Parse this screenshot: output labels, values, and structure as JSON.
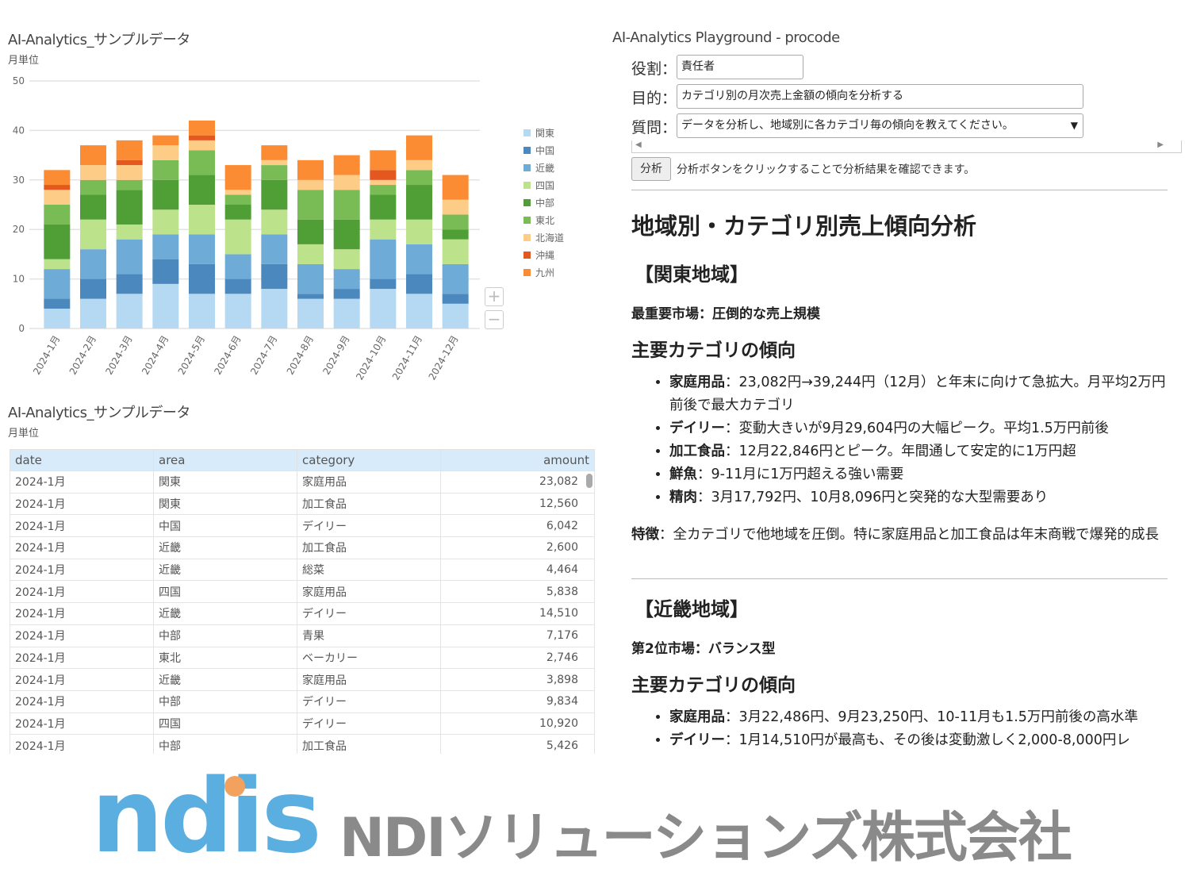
{
  "chart_panel": {
    "title": "AI-Analytics_サンプルデータ",
    "subtitle": "月単位",
    "zoom_in": "+",
    "zoom_out": "−"
  },
  "chart_data": {
    "type": "bar",
    "stacked": true,
    "ylim": [
      0,
      50
    ],
    "yticks": [
      0,
      10,
      20,
      30,
      40,
      50
    ],
    "grid": true,
    "legend_placement": "right",
    "categories": [
      "2024-1月",
      "2024-2月",
      "2024-3月",
      "2024-4月",
      "2024-5月",
      "2024-6月",
      "2024-7月",
      "2024-8月",
      "2024-9月",
      "2024-10月",
      "2024-11月",
      "2024-12月"
    ],
    "series": [
      {
        "name": "関東",
        "color": "#b5d9f3",
        "values": [
          4,
          6,
          7,
          9,
          7,
          7,
          8,
          6,
          6,
          8,
          7,
          5
        ]
      },
      {
        "name": "中国",
        "color": "#4a88bd",
        "values": [
          2,
          4,
          4,
          5,
          6,
          3,
          5,
          1,
          2,
          2,
          4,
          2
        ]
      },
      {
        "name": "近畿",
        "color": "#6eabd6",
        "values": [
          6,
          6,
          7,
          5,
          6,
          5,
          6,
          6,
          4,
          8,
          6,
          6
        ]
      },
      {
        "name": "四国",
        "color": "#bde28c",
        "values": [
          2,
          6,
          3,
          5,
          6,
          7,
          5,
          4,
          4,
          4,
          5,
          5
        ]
      },
      {
        "name": "中部",
        "color": "#4f9e36",
        "values": [
          7,
          5,
          7,
          6,
          6,
          3,
          6,
          5,
          6,
          5,
          7,
          2
        ]
      },
      {
        "name": "東北",
        "color": "#79bb55",
        "values": [
          4,
          3,
          2,
          4,
          5,
          2,
          3,
          6,
          6,
          2,
          3,
          3
        ]
      },
      {
        "name": "北海道",
        "color": "#fdcd88",
        "values": [
          3,
          3,
          3,
          3,
          2,
          1,
          1,
          2,
          3,
          1,
          2,
          3
        ]
      },
      {
        "name": "沖縄",
        "color": "#e4571e",
        "values": [
          1,
          0,
          1,
          0,
          1,
          0,
          0,
          0,
          0,
          2,
          0,
          0
        ]
      },
      {
        "name": "九州",
        "color": "#fb8c33",
        "values": [
          3,
          4,
          4,
          2,
          3,
          5,
          3,
          4,
          4,
          4,
          5,
          5
        ]
      }
    ]
  },
  "table_panel": {
    "title": "AI-Analytics_サンプルデータ",
    "subtitle": "月単位",
    "columns": [
      "date",
      "area",
      "category",
      "amount"
    ],
    "rows": [
      [
        "2024-1月",
        "関東",
        "家庭用品",
        "23,082"
      ],
      [
        "2024-1月",
        "関東",
        "加工食品",
        "12,560"
      ],
      [
        "2024-1月",
        "中国",
        "デイリー",
        "6,042"
      ],
      [
        "2024-1月",
        "近畿",
        "加工食品",
        "2,600"
      ],
      [
        "2024-1月",
        "近畿",
        "総菜",
        "4,464"
      ],
      [
        "2024-1月",
        "四国",
        "家庭用品",
        "5,838"
      ],
      [
        "2024-1月",
        "近畿",
        "デイリー",
        "14,510"
      ],
      [
        "2024-1月",
        "中部",
        "青果",
        "7,176"
      ],
      [
        "2024-1月",
        "東北",
        "ベーカリー",
        "2,746"
      ],
      [
        "2024-1月",
        "近畿",
        "家庭用品",
        "3,898"
      ],
      [
        "2024-1月",
        "中部",
        "デイリー",
        "9,834"
      ],
      [
        "2024-1月",
        "四国",
        "デイリー",
        "10,920"
      ],
      [
        "2024-1月",
        "中部",
        "加工食品",
        "5,426"
      ]
    ]
  },
  "playground": {
    "title": "AI-Analytics Playground - procode",
    "role_label": "役割：",
    "role_value": "責任者",
    "purpose_label": "目的：",
    "purpose_value": "カテゴリ別の月次売上金額の傾向を分析する",
    "question_label": "質問：",
    "question_value": "データを分析し、地域別に各カテゴリ毎の傾向を教えてください。",
    "analyze_button": "分析",
    "hint": "分析ボタンをクリックすることで分析結果を確認できます。"
  },
  "result": {
    "heading": "地域別・カテゴリ別売上傾向分析",
    "sections": [
      {
        "region": "【関東地域】",
        "summary": "最重要市場：圧倒的な売上規模",
        "trend_heading": "主要カテゴリの傾向",
        "items": [
          {
            "k": "家庭用品",
            "v": "：23,082円→39,244円（12月）と年末に向けて急拡大。月平均2万円前後で最大カテゴリ"
          },
          {
            "k": "デイリー",
            "v": "：変動大きいが9月29,604円の大幅ピーク。平均1.5万円前後"
          },
          {
            "k": "加工食品",
            "v": "：12月22,846円とピーク。年間通して安定的に1万円超"
          },
          {
            "k": "鮮魚",
            "v": "：9-11月に1万円超える強い需要"
          },
          {
            "k": "精肉",
            "v": "：3月17,792円、10月8,096円と突発的な大型需要あり"
          }
        ],
        "feature_label": "特徴",
        "feature_text": "：全カテゴリで他地域を圧倒。特に家庭用品と加工食品は年末商戦で爆発的成長"
      },
      {
        "region": "【近畿地域】",
        "summary": "第2位市場：バランス型",
        "trend_heading": "主要カテゴリの傾向",
        "items": [
          {
            "k": "家庭用品",
            "v": "：3月22,486円、9月23,250円、10-11月も1.5万円前後の高水準"
          },
          {
            "k": "デイリー",
            "v": "：1月14,510円が最高も、その後は変動激しく2,000-8,000円レ"
          }
        ]
      }
    ]
  },
  "logo": {
    "mark": "ndis",
    "company": "NDIソリューションズ株式会社",
    "mark_color": "#5aaee0",
    "dot_color": "#f2a25e"
  }
}
